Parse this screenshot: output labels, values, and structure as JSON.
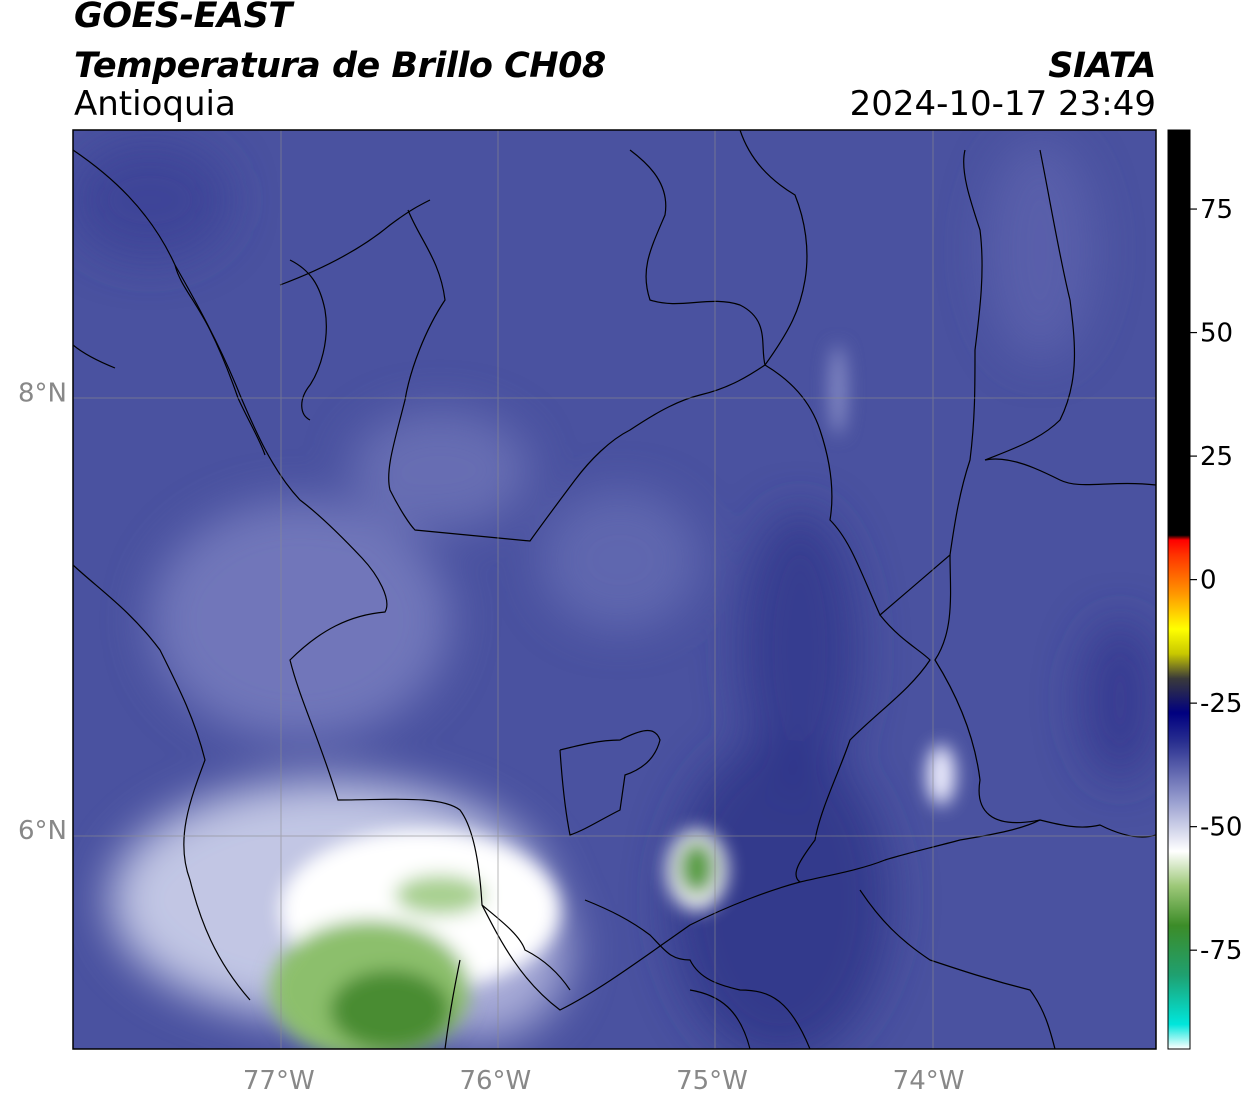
{
  "header": {
    "satellite": "GOES-EAST",
    "product": "Temperatura de Brillo CH08",
    "region": "Antioquia",
    "agency": "SIATA",
    "timestamp": "2024-10-17 23:49"
  },
  "map": {
    "lon_range": [
      -77.95,
      -72.95
    ],
    "lat_range": [
      5.0,
      9.2
    ],
    "lat_ticks": [
      {
        "value": 8,
        "label": "8°N"
      },
      {
        "value": 6,
        "label": "6°N"
      }
    ],
    "lon_ticks": [
      {
        "value": -77,
        "label": "77°W"
      },
      {
        "value": -76,
        "label": "76°W"
      },
      {
        "value": -75,
        "label": "75°W"
      },
      {
        "value": -74,
        "label": "74°W"
      }
    ],
    "background_color": "#4a52a0",
    "border_color": "#000000",
    "grid_color": "#8c8c8c"
  },
  "colorbar": {
    "range": [
      -95,
      91
    ],
    "ticks": [
      {
        "value": 75,
        "label": "75"
      },
      {
        "value": 50,
        "label": "50"
      },
      {
        "value": 25,
        "label": "25"
      },
      {
        "value": 0,
        "label": "0"
      },
      {
        "value": -25,
        "label": "-25"
      },
      {
        "value": -50,
        "label": "-50"
      },
      {
        "value": -75,
        "label": "-75"
      }
    ],
    "stops": [
      {
        "value": -95,
        "color": "#ffffff"
      },
      {
        "value": -90,
        "color": "#00e6dc"
      },
      {
        "value": -80,
        "color": "#1fa070"
      },
      {
        "value": -70,
        "color": "#3c8c28"
      },
      {
        "value": -62,
        "color": "#9dc878"
      },
      {
        "value": -55,
        "color": "#ffffff"
      },
      {
        "value": -45,
        "color": "#9aa0d0"
      },
      {
        "value": -33,
        "color": "#2a3090"
      },
      {
        "value": -27,
        "color": "#000080"
      },
      {
        "value": -20,
        "color": "#3a3a3a"
      },
      {
        "value": -15,
        "color": "#c8c800"
      },
      {
        "value": -10,
        "color": "#ffff00"
      },
      {
        "value": -3,
        "color": "#ff9900"
      },
      {
        "value": 5,
        "color": "#ff3300"
      },
      {
        "value": 8,
        "color": "#ff0000"
      },
      {
        "value": 9,
        "color": "#000000"
      },
      {
        "value": 91,
        "color": "#000000"
      }
    ]
  }
}
